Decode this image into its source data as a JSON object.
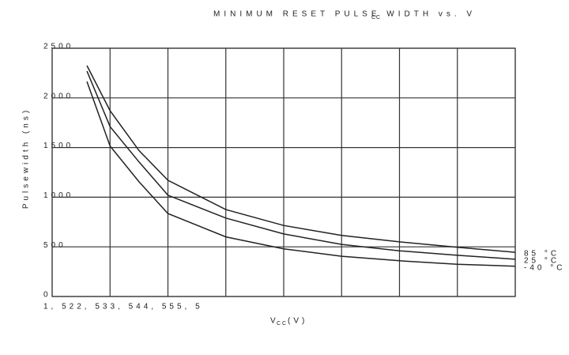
{
  "chart_data": {
    "type": "line",
    "title": "MINIMUM RESET PULSE WIDTH vs. V",
    "title_subscript": "CC",
    "x_label": "V",
    "x_label_subscript": "CC",
    "x_label_unit": "(V)",
    "y_label": "Pulsewidth (ns)",
    "x_tick_text": "1, 522, 533, 544, 555, 5",
    "x": [
      1.3,
      1.5,
      1.75,
      2,
      2.5,
      3,
      3.5,
      4,
      4.5,
      5
    ],
    "series": [
      {
        "name": "85 °C",
        "color": "#222222",
        "values": [
          2325,
          1870,
          1470,
          1170,
          875,
          715,
          615,
          550,
          495,
          445
        ]
      },
      {
        "name": "25 °C",
        "color": "#222222",
        "values": [
          2270,
          1710,
          1355,
          1020,
          790,
          630,
          525,
          460,
          415,
          375
        ]
      },
      {
        "name": "-40 °C",
        "color": "#222222",
        "values": [
          2165,
          1515,
          1155,
          835,
          600,
          480,
          405,
          360,
          325,
          305
        ]
      }
    ],
    "xlim": [
      1,
      5
    ],
    "xticks": [
      1,
      1.5,
      2,
      2.5,
      3,
      3.5,
      4,
      4.5,
      5
    ],
    "ylim": [
      0,
      2500
    ],
    "yticks": [
      0,
      500,
      1000,
      1500,
      2000,
      2500
    ],
    "grid": true
  }
}
